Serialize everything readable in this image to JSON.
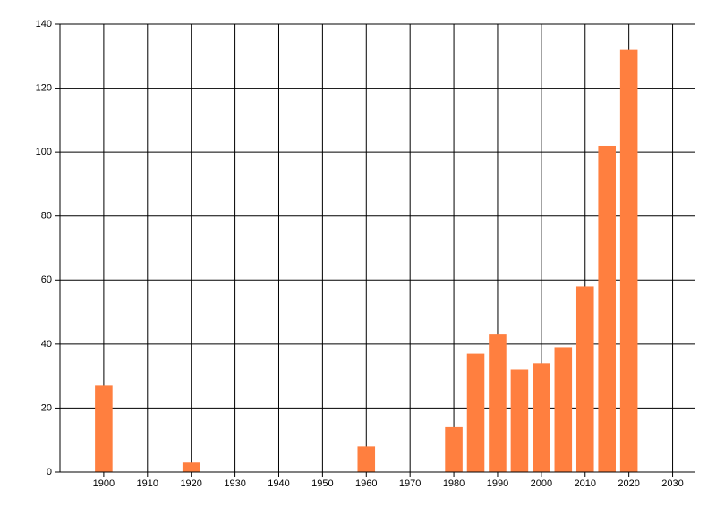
{
  "chart_data": {
    "type": "bar",
    "x": [
      1900,
      1920,
      1960,
      1980,
      1985,
      1990,
      1995,
      2000,
      2005,
      2010,
      2015,
      2020
    ],
    "values": [
      27,
      3,
      8,
      14,
      37,
      43,
      32,
      34,
      39,
      58,
      102,
      132
    ],
    "color": "#ff7f3f",
    "xlim": [
      1890,
      2035
    ],
    "xticks": [
      1900,
      1910,
      1920,
      1930,
      1940,
      1950,
      1960,
      1970,
      1980,
      1990,
      2000,
      2010,
      2020,
      2030
    ],
    "ylim": [
      0,
      140
    ],
    "yticks": [
      0,
      20,
      40,
      60,
      80,
      100,
      120,
      140
    ],
    "grid": true
  }
}
